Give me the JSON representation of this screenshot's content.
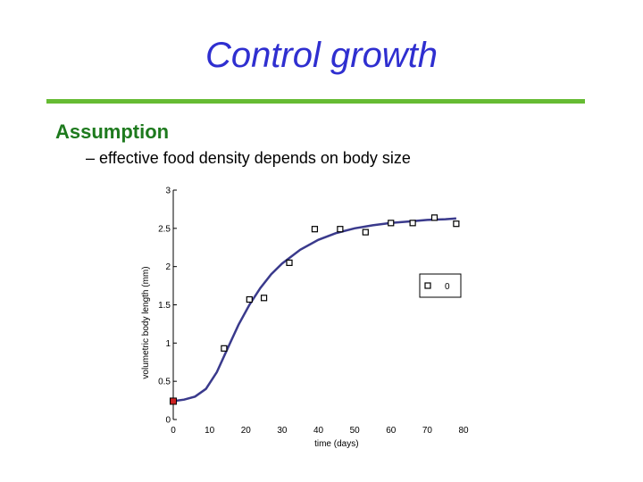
{
  "slide": {
    "title": "Control growth",
    "heading": "Assumption",
    "bullet": "– effective food density depends on body size"
  },
  "colors": {
    "title": "#2f2fd0",
    "rule": "#66bb33",
    "heading": "#1e7a1e",
    "curve": "#3a3a8c",
    "initial_point": "#cc2222"
  },
  "chart_data": {
    "type": "scatter",
    "title": "",
    "xlabel": "time (days)",
    "ylabel": "volumetric body length (mm)",
    "xlim": [
      0,
      80
    ],
    "ylim": [
      0,
      3
    ],
    "x_ticks": [
      0,
      10,
      20,
      30,
      40,
      50,
      60,
      70,
      80
    ],
    "y_ticks": [
      0,
      0.5,
      1,
      1.5,
      2,
      2.5,
      3
    ],
    "x_tick_labels": [
      "0",
      "10",
      "20",
      "30",
      "40",
      "50",
      "60",
      "70",
      "80"
    ],
    "y_tick_labels": [
      "0",
      "0.5",
      "1",
      "1.5",
      "2",
      "2.5",
      "3"
    ],
    "legend": {
      "label": "0",
      "placement": "right"
    },
    "series": [
      {
        "name": "0",
        "kind": "points",
        "marker": "hollow-square",
        "x": [
          14,
          21,
          25,
          32,
          39,
          46,
          53,
          60,
          66,
          72,
          78
        ],
        "y": [
          0.93,
          1.57,
          1.59,
          2.05,
          2.49,
          2.49,
          2.45,
          2.57,
          2.57,
          2.64,
          2.56
        ]
      },
      {
        "kind": "initial-point",
        "marker": "filled-square",
        "x": [
          0
        ],
        "y": [
          0.24
        ]
      },
      {
        "kind": "fitted-curve",
        "x": [
          0,
          3,
          6,
          9,
          12,
          15,
          18,
          21,
          24,
          27,
          30,
          35,
          40,
          45,
          50,
          55,
          60,
          65,
          70,
          75,
          78
        ],
        "y": [
          0.24,
          0.26,
          0.3,
          0.4,
          0.62,
          0.93,
          1.24,
          1.5,
          1.72,
          1.9,
          2.04,
          2.22,
          2.35,
          2.44,
          2.5,
          2.54,
          2.57,
          2.59,
          2.61,
          2.62,
          2.63
        ]
      }
    ]
  }
}
